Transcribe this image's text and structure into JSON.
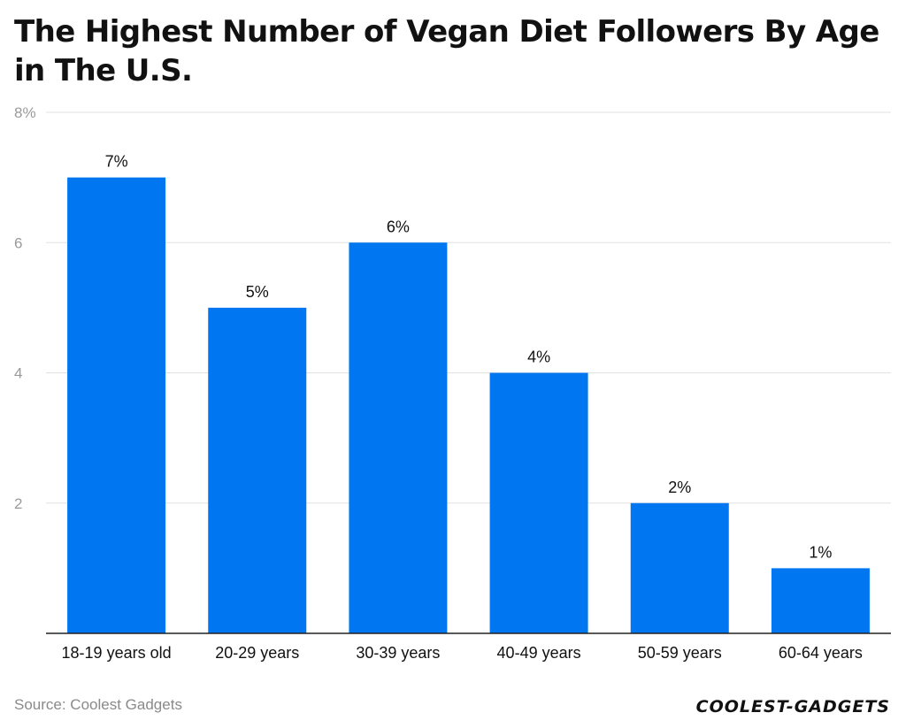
{
  "chart_data": {
    "type": "bar",
    "title": "The Highest Number of Vegan Diet Followers By Age in The U.S.",
    "categories": [
      "18-19 years old",
      "20-29 years",
      "30-39 years",
      "40-49 years",
      "50-59 years",
      "60-64 years"
    ],
    "values": [
      7,
      5,
      6,
      4,
      2,
      1
    ],
    "data_labels": [
      "7%",
      "5%",
      "6%",
      "4%",
      "2%",
      "1%"
    ],
    "ylim": [
      0,
      8
    ],
    "yticks": [
      2,
      4,
      6,
      8
    ],
    "ytick_labels": [
      "2",
      "4",
      "6",
      "8%"
    ],
    "xlabel": "",
    "ylabel": "",
    "grid": true,
    "bar_color": "#0077f0"
  },
  "footer": {
    "source": "Source: Coolest Gadgets",
    "logo": "Coolest-Gadgets"
  }
}
